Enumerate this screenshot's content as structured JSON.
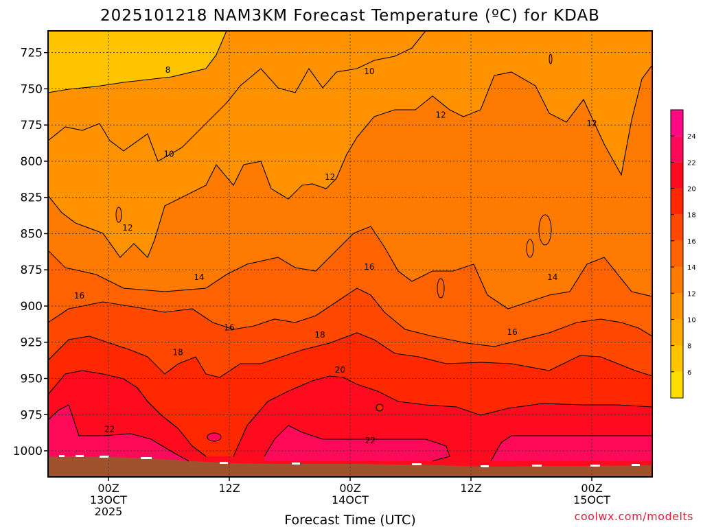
{
  "chart_data": {
    "type": "heatmap",
    "title": "2025101218 NAM3KM Forecast Temperature (ºC) for KDAB",
    "xlabel": "Forecast Time (UTC)",
    "ylabel": "",
    "credit": "coolwx.com/modelts",
    "x_ticks": [
      {
        "hour": 6,
        "lines": [
          "00Z",
          "13OCT",
          "2025"
        ]
      },
      {
        "hour": 18,
        "lines": [
          "12Z"
        ]
      },
      {
        "hour": 30,
        "lines": [
          "00Z",
          "14OCT"
        ]
      },
      {
        "hour": 42,
        "lines": [
          "12Z"
        ]
      },
      {
        "hour": 54,
        "lines": [
          "00Z",
          "15OCT"
        ]
      }
    ],
    "xlim_hours": [
      0,
      60
    ],
    "y_ticks": [
      725,
      750,
      775,
      800,
      825,
      850,
      875,
      900,
      925,
      950,
      975,
      1000
    ],
    "ylim_hPa": [
      710,
      1018
    ],
    "colorbar": {
      "levels": [
        4,
        6,
        8,
        10,
        12,
        14,
        16,
        18,
        20,
        22,
        24,
        26
      ],
      "tick_labels": [
        "6",
        "8",
        "10",
        "12",
        "14",
        "16",
        "18",
        "20",
        "22",
        "24"
      ],
      "colors": [
        "#ffdd00",
        "#ffc400",
        "#ffaa00",
        "#ff9200",
        "#ff7a00",
        "#ff6200",
        "#ff4800",
        "#ff2800",
        "#ff0a1e",
        "#ff0a5a",
        "#ff0a82"
      ]
    },
    "contour_labels": [
      {
        "value": "8",
        "hour": 11.9,
        "p": 737
      },
      {
        "value": "10",
        "hour": 12.0,
        "p": 795
      },
      {
        "value": "10",
        "hour": 31.9,
        "p": 738
      },
      {
        "value": "12",
        "hour": 7.9,
        "p": 846
      },
      {
        "value": "12",
        "hour": 28.0,
        "p": 811
      },
      {
        "value": "12",
        "hour": 39.0,
        "p": 768
      },
      {
        "value": "12",
        "hour": 54.0,
        "p": 774
      },
      {
        "value": "14",
        "hour": 15.0,
        "p": 880
      },
      {
        "value": "14",
        "hour": 50.1,
        "p": 880
      },
      {
        "value": "16",
        "hour": 3.1,
        "p": 893
      },
      {
        "value": "16",
        "hour": 18.0,
        "p": 915
      },
      {
        "value": "16",
        "hour": 31.9,
        "p": 873
      },
      {
        "value": "16",
        "hour": 46.1,
        "p": 918
      },
      {
        "value": "18",
        "hour": 12.9,
        "p": 932
      },
      {
        "value": "18",
        "hour": 27.0,
        "p": 920
      },
      {
        "value": "20",
        "hour": 29.0,
        "p": 944
      },
      {
        "value": "22",
        "hour": 6.1,
        "p": 985
      },
      {
        "value": "22",
        "hour": 32.0,
        "p": 993
      }
    ],
    "regions": [
      {
        "name": "6 to 8 °C",
        "hour_range": [
          0,
          15
        ],
        "p_range": [
          710,
          745
        ]
      },
      {
        "name": "8 to 10 °C",
        "hour_range": [
          0,
          38
        ],
        "p_range": [
          710,
          795
        ]
      },
      {
        "name": "10 to 12 °C",
        "hour_range": [
          0,
          60
        ],
        "p_range": [
          710,
          850
        ]
      },
      {
        "name": "12 to 14 °C",
        "hour_range": [
          0,
          60
        ],
        "p_range": [
          730,
          880
        ]
      },
      {
        "name": "14 to 16 °C",
        "hour_range": [
          0,
          60
        ],
        "p_range": [
          840,
          910
        ]
      },
      {
        "name": "16 to 18 °C",
        "hour_range": [
          0,
          60
        ],
        "p_range": [
          860,
          940
        ]
      },
      {
        "name": "18 to 20 °C",
        "hour_range": [
          0,
          60
        ],
        "p_range": [
          890,
          975
        ]
      },
      {
        "name": "20 to 22 °C",
        "hour_range": [
          0,
          60
        ],
        "p_range": [
          935,
          1005
        ]
      },
      {
        "name": "22 to 24 °C",
        "hour_range": [
          0,
          60
        ],
        "p_range": [
          965,
          1012
        ]
      }
    ],
    "surface_pressure_hPa": 1010
  }
}
